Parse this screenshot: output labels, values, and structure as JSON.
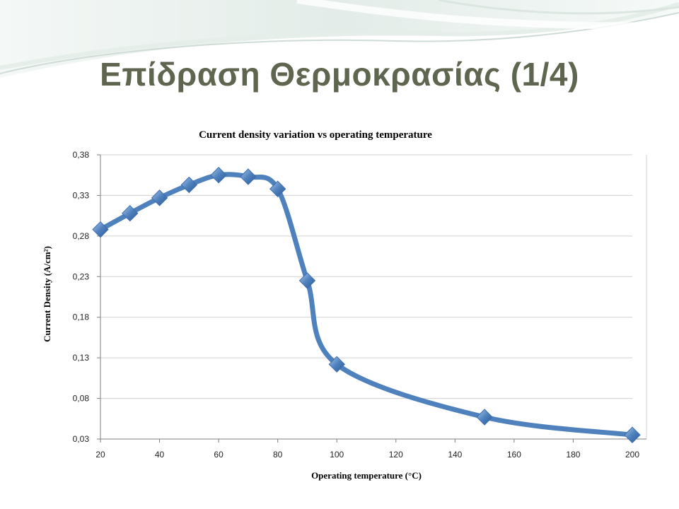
{
  "slide": {
    "title": "Επίδραση Θερμοκρασίας (1/4)",
    "colors": {
      "title": "#5f6650",
      "series": "#4f81bd",
      "marker": "#3d6fb0",
      "grid": "#d0d0d0",
      "swoosh": "#dfe9e4"
    }
  },
  "chart_data": {
    "type": "line",
    "title": "Current density variation vs operating temperature",
    "xlabel": "Operating temperature (°C)",
    "ylabel": "Current Density (A/cm²)",
    "xlim": [
      20,
      200
    ],
    "ylim": [
      0.03,
      0.38
    ],
    "x_ticks": [
      20,
      40,
      60,
      80,
      100,
      120,
      140,
      160,
      180,
      200
    ],
    "x_tick_labels": [
      "20",
      "40",
      "60",
      "80",
      "100",
      "120",
      "140",
      "160",
      "180",
      "200"
    ],
    "y_ticks": [
      0.03,
      0.08,
      0.13,
      0.18,
      0.23,
      0.28,
      0.33,
      0.38
    ],
    "y_tick_labels": [
      "0,03",
      "0,08",
      "0,13",
      "0,18",
      "0,23",
      "0,28",
      "0,33",
      "0,38"
    ],
    "grid": "horizontal",
    "legend": "none",
    "smooth": true,
    "series": [
      {
        "x": [
          20,
          30,
          40,
          50,
          60,
          70,
          80,
          90,
          100,
          150,
          200
        ],
        "y": [
          0.288,
          0.308,
          0.327,
          0.343,
          0.355,
          0.353,
          0.338,
          0.225,
          0.122,
          0.057,
          0.035
        ]
      }
    ]
  }
}
